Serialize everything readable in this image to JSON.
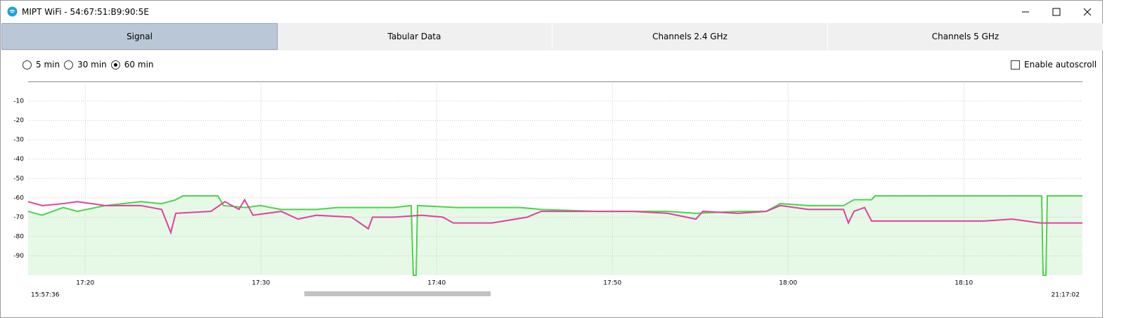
{
  "window": {
    "title": "MIPT WiFi - 54:67:51:B9:90:5E"
  },
  "tabs": [
    {
      "label": "Signal",
      "active": true
    },
    {
      "label": "Tabular Data",
      "active": false
    },
    {
      "label": "Channels 2.4 GHz",
      "active": false
    },
    {
      "label": "Channels 5 GHz",
      "active": false
    }
  ],
  "time_ranges": [
    {
      "label": "5 min",
      "selected": false
    },
    {
      "label": "30 min",
      "selected": false
    },
    {
      "label": "60 min",
      "selected": true
    }
  ],
  "autoscroll": {
    "label": "Enable autoscroll",
    "checked": false
  },
  "chart_data": {
    "type": "line",
    "xlim": [
      16.75,
      76.75
    ],
    "xticks": [
      {
        "value": 20,
        "label": "17:20"
      },
      {
        "value": 30,
        "label": "17:30"
      },
      {
        "value": 40,
        "label": "17:40"
      },
      {
        "value": 50,
        "label": "17:50"
      },
      {
        "value": 60,
        "label": "18:00"
      },
      {
        "value": 70,
        "label": "18:10"
      }
    ],
    "ylim": [
      -100,
      0
    ],
    "yticks": [
      -10,
      -20,
      -30,
      -40,
      -50,
      -60,
      -70,
      -80,
      -90
    ],
    "grid": true,
    "range_start": "15:57:36",
    "range_end": "21:17:02",
    "series": [
      {
        "color": "#4cd34c",
        "area": true,
        "x": [
          16.75,
          17.55,
          18.75,
          19.55,
          21.15,
          23.15,
          24.35,
          25.15,
          25.55,
          27.55,
          27.87,
          29.15,
          29.95,
          31.15,
          33.15,
          34.35,
          35.95,
          37.55,
          38.55,
          38.67,
          38.83,
          38.91,
          41.15,
          43.15,
          44.75,
          45.95,
          49.15,
          51.15,
          53.15,
          54.75,
          57.15,
          58.75,
          59.55,
          61.15,
          63.15,
          63.75,
          64.75,
          64.95,
          67.15,
          71.15,
          74.43,
          74.51,
          74.67,
          74.75,
          76.75
        ],
        "values": [
          -67,
          -69,
          -65,
          -67,
          -64,
          -62,
          -63,
          -61,
          -59,
          -59,
          -64,
          -65,
          -64,
          -66,
          -66,
          -65,
          -65,
          -65,
          -64,
          -100,
          -100,
          -64,
          -65,
          -65,
          -65,
          -66,
          -67,
          -67,
          -67,
          -68,
          -67,
          -67,
          -63,
          -64,
          -64,
          -61,
          -61,
          -59,
          -59,
          -59,
          -59,
          -100,
          -100,
          -59,
          -59
        ]
      },
      {
        "color": "#e040a0",
        "x": [
          16.75,
          17.55,
          18.75,
          19.55,
          21.15,
          23.15,
          24.35,
          24.87,
          25.15,
          27.15,
          27.95,
          28.75,
          29.07,
          29.55,
          31.15,
          32.11,
          33.15,
          35.15,
          36.11,
          36.35,
          37.55,
          39.15,
          40.35,
          40.95,
          43.15,
          45.15,
          45.95,
          49.15,
          51.15,
          53.15,
          54.75,
          55.15,
          57.15,
          58.75,
          59.55,
          61.15,
          63.15,
          63.43,
          63.75,
          64.35,
          64.75,
          67.15,
          71.15,
          72.75,
          74.35,
          76.75
        ],
        "values": [
          -62,
          -64,
          -63,
          -62,
          -64,
          -64,
          -66,
          -78,
          -68,
          -67,
          -62,
          -66,
          -61,
          -69,
          -67,
          -71,
          -69,
          -70,
          -76,
          -70,
          -70,
          -69,
          -70,
          -73,
          -73,
          -70,
          -67,
          -67,
          -67,
          -68,
          -71,
          -67,
          -68,
          -67,
          -64,
          -66,
          -66,
          -73,
          -67,
          -65,
          -72,
          -72,
          -72,
          -71,
          -73,
          -73
        ]
      }
    ]
  }
}
